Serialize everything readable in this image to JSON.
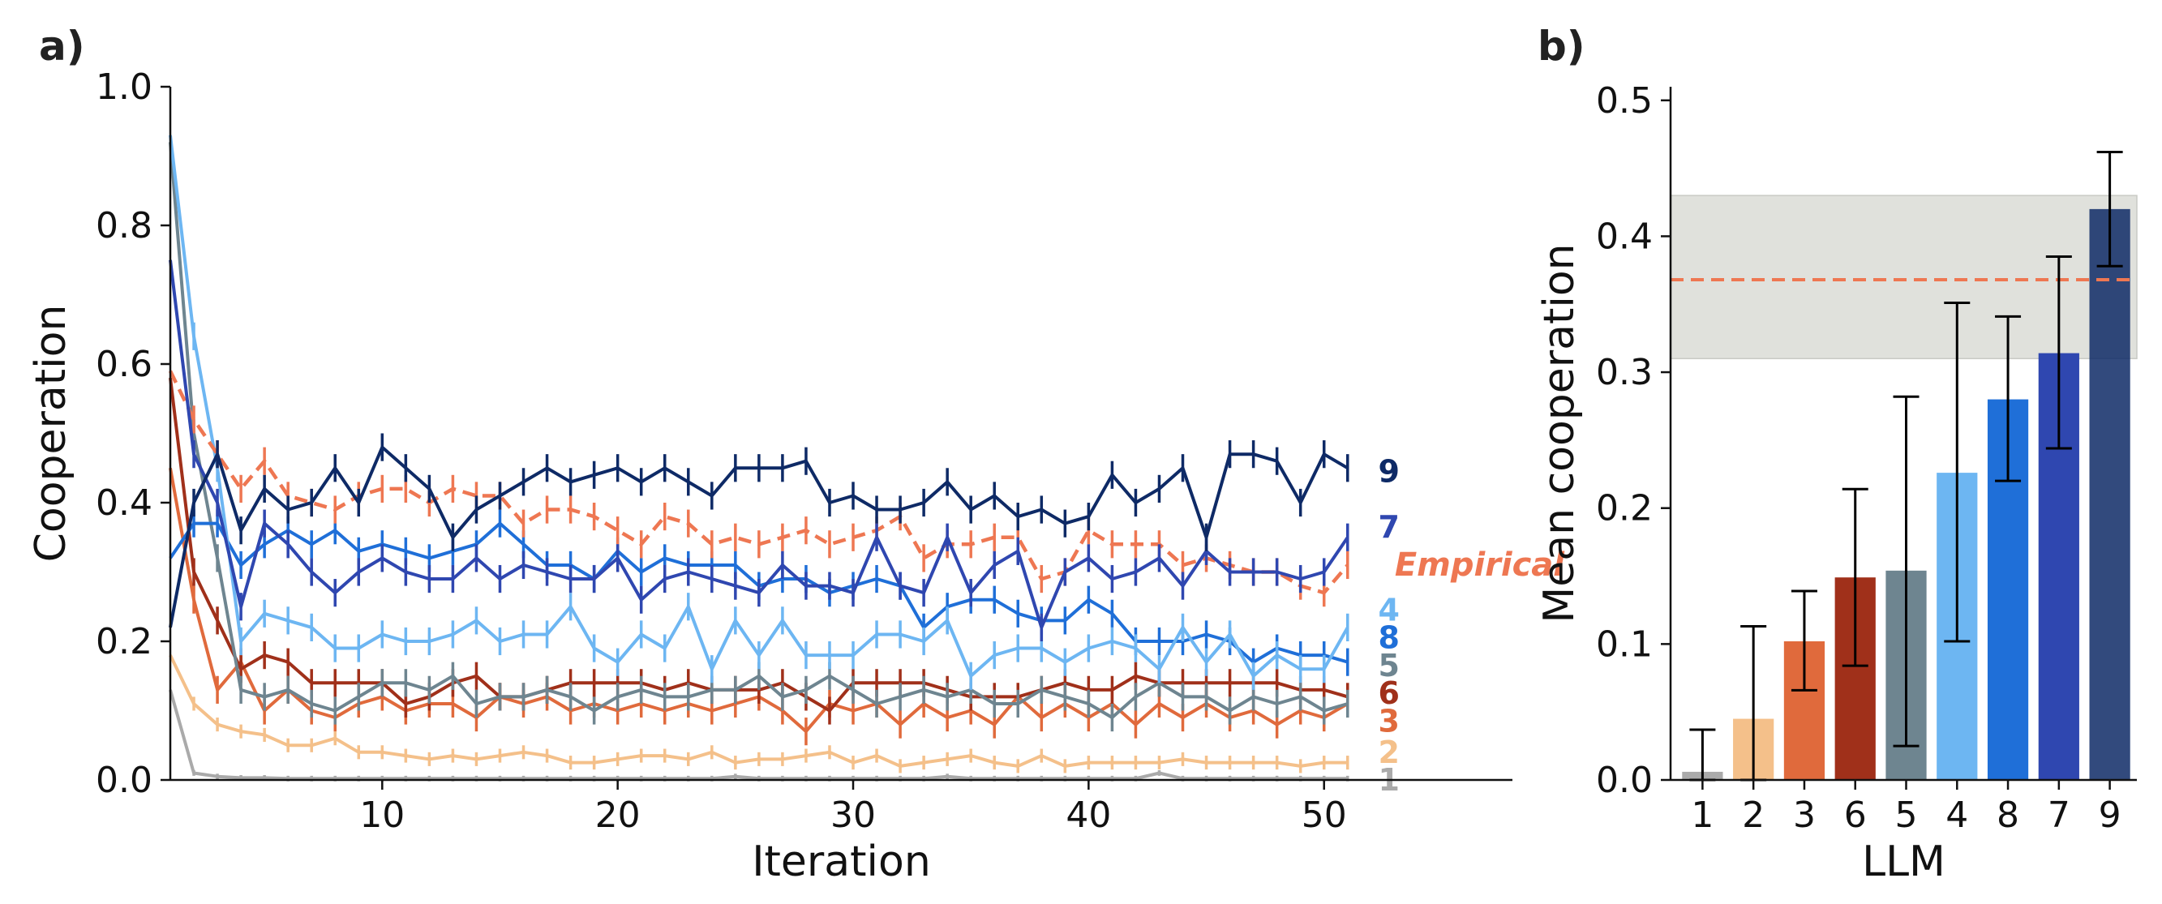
{
  "panels": {
    "a_label": "a)",
    "b_label": "b)"
  },
  "colors": {
    "1": "#aaaaaa",
    "2": "#f4c08a",
    "3": "#e06a3c",
    "4": "#6db6f2",
    "5": "#6e8590",
    "6": "#a0301a",
    "7": "#2f47b0",
    "8": "#1f6fd8",
    "9": "#0e2a66",
    "Empirical": "#ee7752",
    "band": "#e0e1dc"
  },
  "chart_data": [
    {
      "type": "line",
      "panel": "a",
      "xlabel": "Iteration",
      "ylabel": "Cooperation",
      "xlim": [
        1,
        58
      ],
      "ylim": [
        0,
        1.0
      ],
      "xticks": [
        10,
        20,
        30,
        40,
        50
      ],
      "yticks": [
        "0.0",
        "0.2",
        "0.4",
        "0.6",
        "0.8",
        "1.0"
      ],
      "grid": false,
      "error_bars": true,
      "series": [
        {
          "name": "1",
          "label_y": 0.0,
          "error": 0.004,
          "values": [
            0.13,
            0.01,
            0.005,
            0.003,
            0.003,
            0.002,
            0.002,
            0.002,
            0.002,
            0.002,
            0.002,
            0.002,
            0.002,
            0.002,
            0.002,
            0.002,
            0.002,
            0.002,
            0.002,
            0.002,
            0.002,
            0.002,
            0.002,
            0.002,
            0.005,
            0.002,
            0.002,
            0.002,
            0.002,
            0.002,
            0.002,
            0.002,
            0.002,
            0.005,
            0.002,
            0.002,
            0.002,
            0.002,
            0.002,
            0.002,
            0.002,
            0.002,
            0.01,
            0.002,
            0.002,
            0.002,
            0.002,
            0.002,
            0.002,
            0.002,
            0.002
          ]
        },
        {
          "name": "2",
          "label_y": 0.04,
          "error": 0.01,
          "values": [
            0.18,
            0.11,
            0.08,
            0.07,
            0.065,
            0.05,
            0.05,
            0.06,
            0.04,
            0.04,
            0.035,
            0.03,
            0.035,
            0.03,
            0.035,
            0.04,
            0.035,
            0.025,
            0.025,
            0.03,
            0.035,
            0.035,
            0.03,
            0.04,
            0.025,
            0.03,
            0.03,
            0.035,
            0.04,
            0.025,
            0.035,
            0.02,
            0.025,
            0.03,
            0.035,
            0.025,
            0.02,
            0.035,
            0.02,
            0.025,
            0.025,
            0.025,
            0.025,
            0.03,
            0.025,
            0.025,
            0.025,
            0.025,
            0.02,
            0.025,
            0.025
          ]
        },
        {
          "name": "3",
          "label_y": 0.085,
          "error": 0.02,
          "values": [
            0.45,
            0.26,
            0.13,
            0.17,
            0.1,
            0.13,
            0.1,
            0.09,
            0.11,
            0.12,
            0.1,
            0.11,
            0.11,
            0.09,
            0.12,
            0.11,
            0.12,
            0.1,
            0.11,
            0.1,
            0.11,
            0.1,
            0.11,
            0.1,
            0.11,
            0.12,
            0.1,
            0.07,
            0.11,
            0.1,
            0.11,
            0.08,
            0.11,
            0.09,
            0.1,
            0.08,
            0.12,
            0.09,
            0.11,
            0.09,
            0.11,
            0.08,
            0.11,
            0.09,
            0.11,
            0.09,
            0.1,
            0.08,
            0.1,
            0.09,
            0.11
          ]
        },
        {
          "name": "6",
          "label_y": 0.125,
          "error": 0.02,
          "values": [
            0.58,
            0.3,
            0.23,
            0.16,
            0.18,
            0.17,
            0.14,
            0.14,
            0.14,
            0.14,
            0.11,
            0.12,
            0.14,
            0.15,
            0.12,
            0.12,
            0.13,
            0.14,
            0.14,
            0.14,
            0.14,
            0.13,
            0.14,
            0.13,
            0.13,
            0.13,
            0.14,
            0.12,
            0.1,
            0.14,
            0.14,
            0.14,
            0.14,
            0.13,
            0.12,
            0.12,
            0.12,
            0.13,
            0.14,
            0.13,
            0.13,
            0.15,
            0.14,
            0.14,
            0.14,
            0.14,
            0.14,
            0.14,
            0.13,
            0.13,
            0.12
          ]
        },
        {
          "name": "5",
          "label_y": 0.165,
          "error": 0.02,
          "values": [
            0.92,
            0.5,
            0.32,
            0.13,
            0.12,
            0.13,
            0.11,
            0.1,
            0.12,
            0.14,
            0.14,
            0.13,
            0.15,
            0.11,
            0.12,
            0.12,
            0.13,
            0.12,
            0.1,
            0.12,
            0.13,
            0.12,
            0.12,
            0.13,
            0.13,
            0.15,
            0.12,
            0.13,
            0.15,
            0.13,
            0.11,
            0.12,
            0.13,
            0.12,
            0.13,
            0.11,
            0.11,
            0.13,
            0.12,
            0.11,
            0.09,
            0.12,
            0.14,
            0.12,
            0.12,
            0.1,
            0.12,
            0.11,
            0.12,
            0.1,
            0.11
          ]
        },
        {
          "name": "8",
          "label_y": 0.205,
          "error": 0.02,
          "values": [
            0.32,
            0.37,
            0.37,
            0.31,
            0.34,
            0.36,
            0.34,
            0.36,
            0.33,
            0.34,
            0.33,
            0.32,
            0.33,
            0.34,
            0.37,
            0.34,
            0.31,
            0.31,
            0.29,
            0.33,
            0.3,
            0.32,
            0.31,
            0.31,
            0.31,
            0.28,
            0.29,
            0.29,
            0.27,
            0.28,
            0.29,
            0.28,
            0.22,
            0.25,
            0.26,
            0.26,
            0.24,
            0.23,
            0.23,
            0.26,
            0.24,
            0.2,
            0.2,
            0.2,
            0.21,
            0.2,
            0.17,
            0.19,
            0.18,
            0.18,
            0.17
          ]
        },
        {
          "name": "4",
          "label_y": 0.245,
          "error": 0.02,
          "values": [
            0.93,
            0.64,
            0.45,
            0.2,
            0.24,
            0.23,
            0.22,
            0.19,
            0.19,
            0.21,
            0.2,
            0.2,
            0.21,
            0.23,
            0.2,
            0.21,
            0.21,
            0.25,
            0.19,
            0.17,
            0.21,
            0.19,
            0.25,
            0.16,
            0.23,
            0.18,
            0.23,
            0.18,
            0.18,
            0.18,
            0.21,
            0.21,
            0.2,
            0.23,
            0.15,
            0.18,
            0.19,
            0.19,
            0.17,
            0.19,
            0.2,
            0.19,
            0.16,
            0.22,
            0.17,
            0.21,
            0.15,
            0.18,
            0.16,
            0.16,
            0.22
          ]
        },
        {
          "name": "Empirical",
          "label_y": 0.31,
          "error": 0.02,
          "dashed": true,
          "values": [
            0.59,
            0.52,
            0.47,
            0.42,
            0.46,
            0.41,
            0.4,
            0.39,
            0.41,
            0.42,
            0.42,
            0.4,
            0.42,
            0.41,
            0.41,
            0.37,
            0.39,
            0.39,
            0.38,
            0.36,
            0.34,
            0.38,
            0.37,
            0.34,
            0.35,
            0.34,
            0.35,
            0.36,
            0.34,
            0.35,
            0.36,
            0.38,
            0.32,
            0.34,
            0.34,
            0.35,
            0.35,
            0.29,
            0.3,
            0.36,
            0.34,
            0.34,
            0.34,
            0.31,
            0.32,
            0.31,
            0.3,
            0.3,
            0.28,
            0.27,
            0.31
          ]
        },
        {
          "name": "7",
          "label_y": 0.365,
          "error": 0.02,
          "values": [
            0.75,
            0.47,
            0.4,
            0.25,
            0.37,
            0.34,
            0.3,
            0.27,
            0.3,
            0.32,
            0.3,
            0.29,
            0.29,
            0.32,
            0.29,
            0.31,
            0.3,
            0.29,
            0.29,
            0.32,
            0.26,
            0.29,
            0.3,
            0.29,
            0.28,
            0.27,
            0.31,
            0.28,
            0.28,
            0.27,
            0.35,
            0.28,
            0.27,
            0.35,
            0.27,
            0.31,
            0.33,
            0.22,
            0.3,
            0.32,
            0.29,
            0.3,
            0.32,
            0.28,
            0.33,
            0.3,
            0.3,
            0.3,
            0.29,
            0.3,
            0.35
          ]
        },
        {
          "name": "9",
          "label_y": 0.445,
          "error": 0.02,
          "values": [
            0.22,
            0.4,
            0.47,
            0.36,
            0.42,
            0.39,
            0.4,
            0.45,
            0.4,
            0.48,
            0.45,
            0.42,
            0.35,
            0.39,
            0.41,
            0.43,
            0.45,
            0.43,
            0.44,
            0.45,
            0.43,
            0.45,
            0.43,
            0.41,
            0.45,
            0.45,
            0.45,
            0.46,
            0.4,
            0.41,
            0.39,
            0.39,
            0.4,
            0.43,
            0.39,
            0.41,
            0.38,
            0.39,
            0.37,
            0.38,
            0.44,
            0.4,
            0.42,
            0.45,
            0.35,
            0.47,
            0.47,
            0.46,
            0.4,
            0.47,
            0.45
          ]
        }
      ]
    },
    {
      "type": "bar",
      "panel": "b",
      "xlabel": "LLM",
      "ylabel": "Mean cooperation",
      "ylim": [
        0,
        0.51
      ],
      "yticks": [
        "0.0",
        "0.1",
        "0.2",
        "0.3",
        "0.4",
        "0.5"
      ],
      "grid": false,
      "categories": [
        "1",
        "2",
        "3",
        "6",
        "5",
        "4",
        "8",
        "7",
        "9"
      ],
      "values": [
        0.006,
        0.045,
        0.102,
        0.149,
        0.154,
        0.226,
        0.28,
        0.314,
        0.42
      ],
      "errors_low": [
        0.0,
        0.0,
        0.066,
        0.084,
        0.025,
        0.102,
        0.22,
        0.244,
        0.378
      ],
      "errors_high": [
        0.037,
        0.113,
        0.139,
        0.214,
        0.282,
        0.351,
        0.341,
        0.385,
        0.462
      ],
      "reference_line": 0.368,
      "reference_band": [
        0.31,
        0.43
      ]
    }
  ]
}
